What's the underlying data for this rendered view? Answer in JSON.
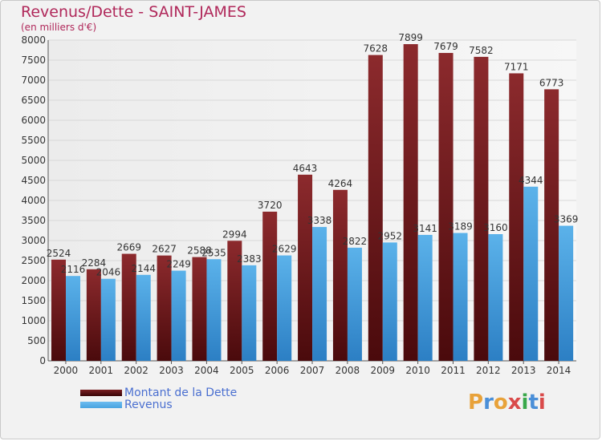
{
  "title": "Revenus/Dette - SAINT-JAMES",
  "subtitle": "(en milliers d'€)",
  "logo": {
    "text": "Proxiti",
    "colors": [
      "#e8a23a",
      "#4a8fd8",
      "#e8a23a",
      "#d94a4a",
      "#3aa84a",
      "#4a8fd8",
      "#d94a4a"
    ]
  },
  "colors": {
    "debt": "#7a1f22",
    "revenue": "#4aa3e0",
    "title": "#b0285a",
    "legend_text": "#4a6fd0"
  },
  "chart_data": {
    "type": "bar",
    "categories": [
      "2000",
      "2001",
      "2002",
      "2003",
      "2004",
      "2005",
      "2006",
      "2007",
      "2008",
      "2009",
      "2010",
      "2011",
      "2012",
      "2013",
      "2014"
    ],
    "series": [
      {
        "name": "Montant de la Dette",
        "values": [
          2524,
          2284,
          2669,
          2627,
          2588,
          2994,
          3720,
          4643,
          4264,
          7628,
          7899,
          7679,
          7582,
          7171,
          6773
        ]
      },
      {
        "name": "Revenus",
        "values": [
          2116,
          2046,
          2144,
          2249,
          2535,
          2383,
          2629,
          3338,
          2822,
          2952,
          3141,
          3189,
          3160,
          4344,
          3369
        ]
      }
    ],
    "ylim": [
      0,
      8000
    ],
    "yticks": [
      0,
      500,
      1000,
      1500,
      2000,
      2500,
      3000,
      3500,
      4000,
      4500,
      5000,
      5500,
      6000,
      6500,
      7000,
      7500,
      8000
    ],
    "grid": true,
    "legend_position": "bottom-left"
  }
}
